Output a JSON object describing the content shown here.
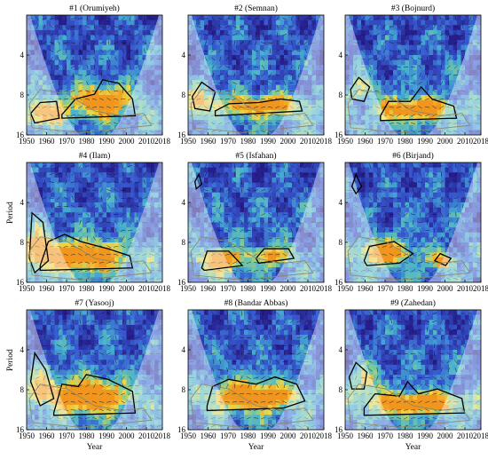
{
  "figure": {
    "colors": {
      "background_low": "#2a2a9a",
      "mid_blue": "#3d6fd6",
      "cyan": "#49b8cf",
      "green": "#7ccb9b",
      "yellow": "#f5d43b",
      "orange": "#f2a21f",
      "contour": "#000000",
      "cone_of_influence": "#ffffff"
    },
    "row_ylabel": "Period",
    "col_xlabel": "Year"
  },
  "chart_data": [
    {
      "type": "heatmap",
      "title": "#1 (Orumiyeh)",
      "x_ticks": [
        "1950",
        "1960",
        "1970",
        "1980",
        "1990",
        "2000",
        "2010",
        "2018"
      ],
      "y_ticks": [
        "4",
        "8",
        "16"
      ],
      "ylabel": "",
      "xlabel": "",
      "xlim": [
        1950,
        2018
      ],
      "ylim": [
        2,
        16
      ],
      "y_scale": "log2"
    },
    {
      "type": "heatmap",
      "title": "#2 (Semnan)",
      "x_ticks": [
        "1950",
        "1960",
        "1970",
        "1980",
        "1990",
        "2000",
        "2010",
        "2018"
      ],
      "y_ticks": [
        "4",
        "8",
        "16"
      ],
      "ylabel": "",
      "xlabel": "",
      "xlim": [
        1950,
        2018
      ],
      "ylim": [
        2,
        16
      ],
      "y_scale": "log2"
    },
    {
      "type": "heatmap",
      "title": "#3 (Bojnurd)",
      "x_ticks": [
        "1950",
        "1960",
        "1970",
        "1980",
        "1990",
        "2000",
        "2010",
        "2018"
      ],
      "y_ticks": [
        "4",
        "8",
        "16"
      ],
      "ylabel": "",
      "xlabel": "",
      "xlim": [
        1950,
        2018
      ],
      "ylim": [
        2,
        16
      ],
      "y_scale": "log2"
    },
    {
      "type": "heatmap",
      "title": "#4 (Ilam)",
      "x_ticks": [
        "1950",
        "1960",
        "1970",
        "1980",
        "1990",
        "2000",
        "2010",
        "2018"
      ],
      "y_ticks": [
        "4",
        "8",
        "16"
      ],
      "ylabel": "",
      "xlabel": "",
      "xlim": [
        1950,
        2018
      ],
      "ylim": [
        2,
        16
      ],
      "y_scale": "log2"
    },
    {
      "type": "heatmap",
      "title": "#5 (Isfahan)",
      "x_ticks": [
        "1950",
        "1960",
        "1970",
        "1980",
        "1990",
        "2000",
        "2010",
        "2018"
      ],
      "y_ticks": [
        "4",
        "8",
        "16"
      ],
      "ylabel": "",
      "xlabel": "",
      "xlim": [
        1950,
        2018
      ],
      "ylim": [
        2,
        16
      ],
      "y_scale": "log2"
    },
    {
      "type": "heatmap",
      "title": "#6 (Birjand)",
      "x_ticks": [
        "1950",
        "1960",
        "1970",
        "1980",
        "1990",
        "2000",
        "2010",
        "2018"
      ],
      "y_ticks": [
        "4",
        "8",
        "16"
      ],
      "ylabel": "",
      "xlabel": "",
      "xlim": [
        1950,
        2018
      ],
      "ylim": [
        2,
        16
      ],
      "y_scale": "log2"
    },
    {
      "type": "heatmap",
      "title": "#7 (Yasooj)",
      "x_ticks": [
        "1950",
        "1960",
        "1970",
        "1980",
        "1990",
        "2000",
        "2010",
        "2018"
      ],
      "y_ticks": [
        "4",
        "8",
        "16"
      ],
      "ylabel": "",
      "xlabel": "",
      "xlim": [
        1950,
        2018
      ],
      "ylim": [
        2,
        16
      ],
      "y_scale": "log2"
    },
    {
      "type": "heatmap",
      "title": "#8 (Bandar Abbas)",
      "x_ticks": [
        "1950",
        "1960",
        "1970",
        "1980",
        "1990",
        "2000",
        "2010",
        "2018"
      ],
      "y_ticks": [
        "4",
        "8",
        "16"
      ],
      "ylabel": "",
      "xlabel": "",
      "xlim": [
        1950,
        2018
      ],
      "ylim": [
        2,
        16
      ],
      "y_scale": "log2"
    },
    {
      "type": "heatmap",
      "title": "#9 (Zahedan)",
      "x_ticks": [
        "1950",
        "1960",
        "1970",
        "1980",
        "1990",
        "2000",
        "2010",
        "2018"
      ],
      "y_ticks": [
        "4",
        "8",
        "16"
      ],
      "ylabel": "",
      "xlabel": "",
      "xlim": [
        1950,
        2018
      ],
      "ylim": [
        2,
        16
      ],
      "y_scale": "log2"
    }
  ]
}
